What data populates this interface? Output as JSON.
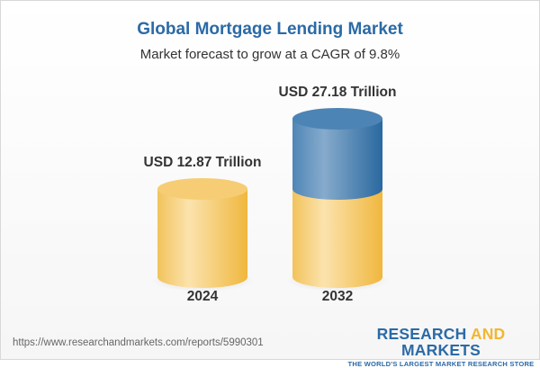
{
  "chart_data": {
    "type": "bar",
    "title": "Global Mortgage Lending Market",
    "subtitle": "Market forecast to grow at a CAGR of 9.8%",
    "categories": [
      "2024",
      "2032"
    ],
    "values": [
      12.87,
      27.18
    ],
    "data_labels": [
      "USD 12.87 Trillion",
      "USD 27.18 Trillion"
    ],
    "unit": "USD Trillion",
    "style": "3d-cylinder",
    "colors": {
      "base": "#f4c55a",
      "growth": "#4b82b4"
    },
    "grid": false
  },
  "footer": {
    "url": "https://www.researchandmarkets.com/reports/5990301",
    "logo_text": "RESEARCH AND MARKETS",
    "logo_part1": "RESEARCH ",
    "logo_part2": "AND",
    "logo_part3": " MARKETS",
    "logo_tagline": "THE WORLD'S LARGEST MARKET RESEARCH STORE"
  }
}
